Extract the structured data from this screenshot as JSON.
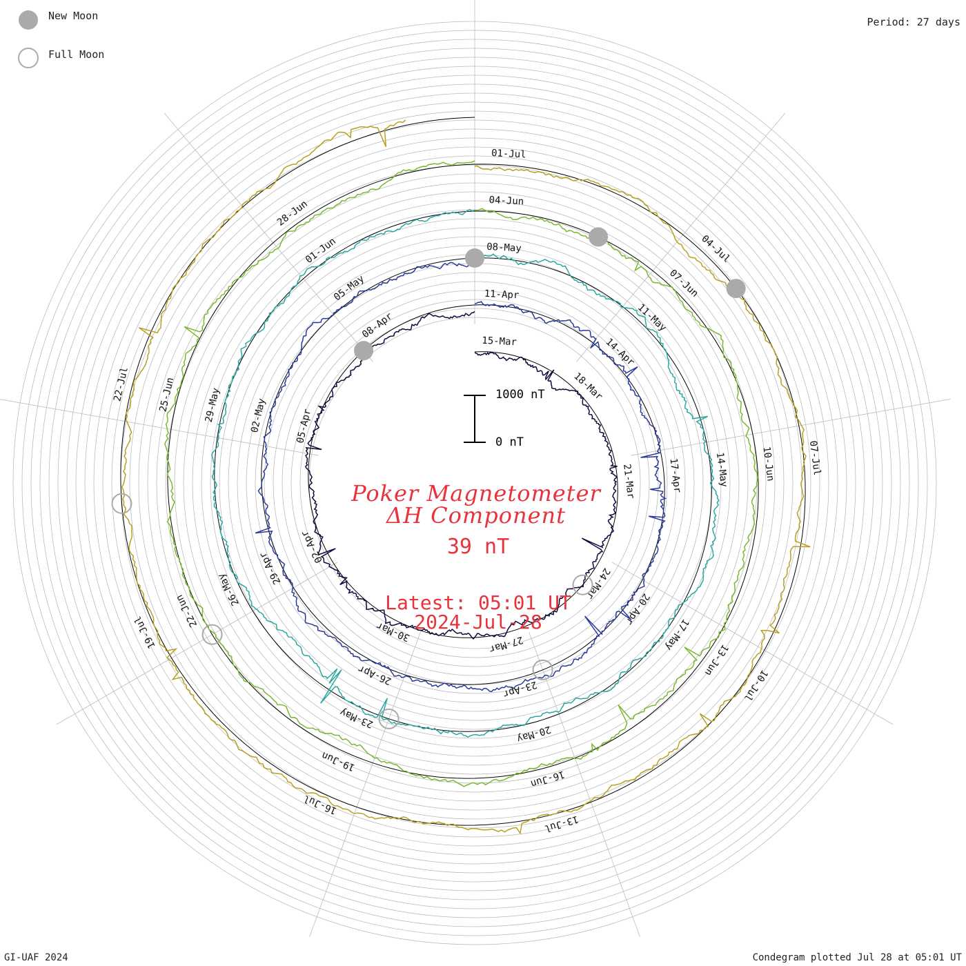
{
  "period_label": "Period: 27 days",
  "legend": {
    "new_moon": "New Moon",
    "full_moon": "Full Moon"
  },
  "footer": {
    "left": "GI-UAF 2024",
    "right": "Condegram plotted Jul 28 at 05:01 UT"
  },
  "center": {
    "title_line1": "Poker Magnetometer",
    "title_line2": "ΔH Component",
    "current_value": "39 nT",
    "latest_line1": "Latest: 05:01 UT",
    "latest_line2": "2024-Jul-28"
  },
  "scale_bar": {
    "top_label": "1000 nT",
    "bottom_label": "0 nT"
  },
  "colors": {
    "title": "#e8323c",
    "grid": "#bbbbbb",
    "baseline": "#000000",
    "new_moon_fill": "#aaaaaa",
    "full_moon_stroke": "#aaaaaa"
  },
  "chart_data": {
    "type": "line",
    "subtype": "spiral condegram",
    "period_days": 27,
    "scale_nT": [
      0,
      1000
    ],
    "turns": [
      {
        "start": "15-Mar",
        "labels": [
          "15-Mar",
          "18-Mar",
          "21-Mar",
          "24-Mar",
          "27-Mar",
          "30-Mar",
          "02-Apr",
          "05-Apr",
          "08-Apr"
        ],
        "color": "#0a0a3c"
      },
      {
        "start": "11-Apr",
        "labels": [
          "11-Apr",
          "14-Apr",
          "17-Apr",
          "20-Apr",
          "23-Apr",
          "26-Apr",
          "29-Apr",
          "02-May",
          "05-May"
        ],
        "color": "#2a3a9a"
      },
      {
        "start": "08-May",
        "labels": [
          "08-May",
          "11-May",
          "14-May",
          "17-May",
          "20-May",
          "23-May",
          "26-May",
          "29-May",
          "01-Jun"
        ],
        "color": "#2aa8a0"
      },
      {
        "start": "04-Jun",
        "labels": [
          "04-Jun",
          "07-Jun",
          "10-Jun",
          "13-Jun",
          "16-Jun",
          "19-Jun",
          "22-Jun",
          "25-Jun",
          "28-Jun"
        ],
        "color": "#7ab830"
      },
      {
        "start": "01-Jul",
        "labels": [
          "01-Jul",
          "04-Jul",
          "07-Jul",
          "10-Jul",
          "13-Jul",
          "16-Jul",
          "19-Jul",
          "22-Jul"
        ],
        "color": "#b8a020"
      }
    ],
    "moon_phases": [
      {
        "type": "new",
        "date": "08-Apr"
      },
      {
        "type": "new",
        "date": "08-May"
      },
      {
        "type": "new",
        "date": "06-Jun"
      },
      {
        "type": "new",
        "date": "05-Jul"
      },
      {
        "type": "full",
        "date": "25-Mar"
      },
      {
        "type": "full",
        "date": "23-Apr"
      },
      {
        "type": "full",
        "date": "23-May"
      },
      {
        "type": "full",
        "date": "22-Jun"
      },
      {
        "type": "full",
        "date": "21-Jul"
      }
    ]
  }
}
